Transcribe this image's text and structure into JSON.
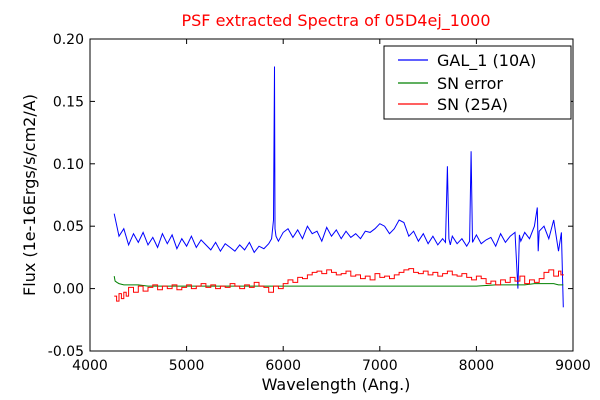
{
  "chart_data": {
    "type": "line",
    "title": "PSF extracted Spectra of 05D4ej_1000",
    "title_color": "#ff0000",
    "xlabel": "Wavelength (Ang.)",
    "ylabel": "Flux (1e-16Ergs/s/cm2/A)",
    "xlim": [
      4000,
      9000
    ],
    "ylim": [
      -0.05,
      0.2
    ],
    "x_ticks": [
      4000,
      5000,
      6000,
      7000,
      8000,
      9000
    ],
    "y_ticks": [
      -0.05,
      0.0,
      0.05,
      0.1,
      0.15,
      0.2
    ],
    "x_tick_labels": [
      "4000",
      "5000",
      "6000",
      "7000",
      "8000",
      "9000"
    ],
    "y_tick_labels": [
      "-0.05",
      "0.00",
      "0.05",
      "0.10",
      "0.15",
      "0.20"
    ],
    "grid": false,
    "legend_position": "top-right",
    "series": [
      {
        "name": "GAL_1 (10A)",
        "color": "#0000ff",
        "style": "line",
        "x": [
          4250,
          4300,
          4350,
          4400,
          4450,
          4500,
          4550,
          4600,
          4650,
          4700,
          4750,
          4800,
          4850,
          4900,
          4950,
          5000,
          5050,
          5100,
          5150,
          5200,
          5250,
          5300,
          5350,
          5400,
          5450,
          5500,
          5550,
          5600,
          5650,
          5700,
          5750,
          5800,
          5850,
          5880,
          5900,
          5910,
          5915,
          5925,
          5950,
          6000,
          6050,
          6100,
          6150,
          6200,
          6250,
          6300,
          6350,
          6400,
          6450,
          6500,
          6550,
          6600,
          6650,
          6700,
          6750,
          6800,
          6850,
          6900,
          6950,
          7000,
          7050,
          7100,
          7150,
          7200,
          7250,
          7300,
          7350,
          7400,
          7450,
          7500,
          7550,
          7600,
          7650,
          7680,
          7700,
          7715,
          7730,
          7750,
          7800,
          7850,
          7900,
          7930,
          7945,
          7960,
          8000,
          8050,
          8100,
          8150,
          8200,
          8250,
          8300,
          8350,
          8400,
          8430,
          8445,
          8460,
          8500,
          8550,
          8600,
          8630,
          8640,
          8650,
          8700,
          8750,
          8800,
          8850,
          8880,
          8900
        ],
        "y": [
          0.06,
          0.042,
          0.048,
          0.035,
          0.044,
          0.037,
          0.045,
          0.035,
          0.041,
          0.033,
          0.044,
          0.036,
          0.043,
          0.032,
          0.04,
          0.034,
          0.042,
          0.033,
          0.039,
          0.035,
          0.031,
          0.037,
          0.03,
          0.036,
          0.033,
          0.03,
          0.035,
          0.031,
          0.037,
          0.029,
          0.034,
          0.032,
          0.036,
          0.04,
          0.055,
          0.178,
          0.048,
          0.042,
          0.038,
          0.045,
          0.048,
          0.041,
          0.047,
          0.04,
          0.05,
          0.044,
          0.046,
          0.038,
          0.049,
          0.042,
          0.047,
          0.04,
          0.046,
          0.041,
          0.044,
          0.04,
          0.046,
          0.045,
          0.048,
          0.052,
          0.05,
          0.044,
          0.048,
          0.055,
          0.053,
          0.042,
          0.046,
          0.038,
          0.044,
          0.036,
          0.042,
          0.035,
          0.04,
          0.037,
          0.098,
          0.04,
          0.035,
          0.042,
          0.036,
          0.04,
          0.034,
          0.038,
          0.11,
          0.037,
          0.043,
          0.036,
          0.039,
          0.041,
          0.034,
          0.044,
          0.037,
          0.042,
          0.045,
          0.0,
          0.043,
          0.038,
          0.045,
          0.04,
          0.05,
          0.065,
          0.03,
          0.046,
          0.05,
          0.04,
          0.055,
          0.03,
          0.045,
          -0.015
        ]
      },
      {
        "name": "SN error",
        "color": "#008000",
        "style": "line",
        "x": [
          4250,
          4260,
          4280,
          4300,
          4350,
          4400,
          4500,
          4600,
          4800,
          5000,
          5200,
          5500,
          5800,
          6000,
          6200,
          6500,
          6800,
          7000,
          7200,
          7500,
          7800,
          8000,
          8200,
          8400,
          8500,
          8600,
          8700,
          8800,
          8850,
          8900
        ],
        "y": [
          0.01,
          0.006,
          0.005,
          0.004,
          0.003,
          0.003,
          0.003,
          0.002,
          0.002,
          0.002,
          0.002,
          0.002,
          0.002,
          0.002,
          0.002,
          0.002,
          0.002,
          0.002,
          0.002,
          0.002,
          0.002,
          0.002,
          0.003,
          0.003,
          0.003,
          0.004,
          0.004,
          0.004,
          0.003,
          0.003
        ]
      },
      {
        "name": "SN (25A)",
        "color": "#ff0000",
        "style": "step",
        "x": [
          4250,
          4275,
          4300,
          4325,
          4350,
          4375,
          4400,
          4450,
          4500,
          4550,
          4600,
          4650,
          4700,
          4750,
          4800,
          4850,
          4900,
          4950,
          5000,
          5050,
          5100,
          5150,
          5200,
          5250,
          5300,
          5350,
          5400,
          5450,
          5500,
          5550,
          5600,
          5650,
          5700,
          5750,
          5800,
          5850,
          5900,
          5950,
          6000,
          6050,
          6100,
          6150,
          6200,
          6250,
          6300,
          6350,
          6400,
          6450,
          6500,
          6550,
          6600,
          6650,
          6700,
          6750,
          6800,
          6850,
          6900,
          6950,
          7000,
          7050,
          7100,
          7150,
          7200,
          7250,
          7300,
          7350,
          7400,
          7450,
          7500,
          7550,
          7600,
          7650,
          7700,
          7750,
          7800,
          7850,
          7900,
          7950,
          8000,
          8050,
          8100,
          8150,
          8200,
          8250,
          8300,
          8350,
          8400,
          8450,
          8500,
          8550,
          8600,
          8650,
          8700,
          8750,
          8800,
          8850,
          8875
        ],
        "y": [
          -0.006,
          -0.01,
          -0.004,
          -0.008,
          -0.003,
          -0.006,
          0.001,
          -0.003,
          0.002,
          -0.002,
          0.001,
          0.003,
          -0.001,
          0.002,
          0.0,
          0.003,
          -0.001,
          0.001,
          0.003,
          0.0,
          0.002,
          0.004,
          0.001,
          0.003,
          0.0,
          0.002,
          0.001,
          0.004,
          0.002,
          0.0,
          0.003,
          0.001,
          0.005,
          0.002,
          0.001,
          -0.003,
          0.002,
          0.0,
          0.004,
          0.007,
          0.005,
          0.009,
          0.008,
          0.011,
          0.013,
          0.014,
          0.012,
          0.015,
          0.013,
          0.011,
          0.012,
          0.014,
          0.01,
          0.011,
          0.008,
          0.01,
          0.007,
          0.012,
          0.009,
          0.01,
          0.008,
          0.011,
          0.013,
          0.015,
          0.016,
          0.013,
          0.012,
          0.014,
          0.011,
          0.013,
          0.01,
          0.012,
          0.014,
          0.011,
          0.01,
          0.012,
          0.009,
          0.007,
          0.01,
          0.008,
          0.004,
          0.006,
          0.003,
          0.007,
          0.005,
          0.009,
          0.006,
          0.01,
          0.004,
          0.007,
          0.005,
          0.008,
          0.013,
          0.015,
          0.01,
          0.014,
          0.011
        ]
      }
    ]
  }
}
